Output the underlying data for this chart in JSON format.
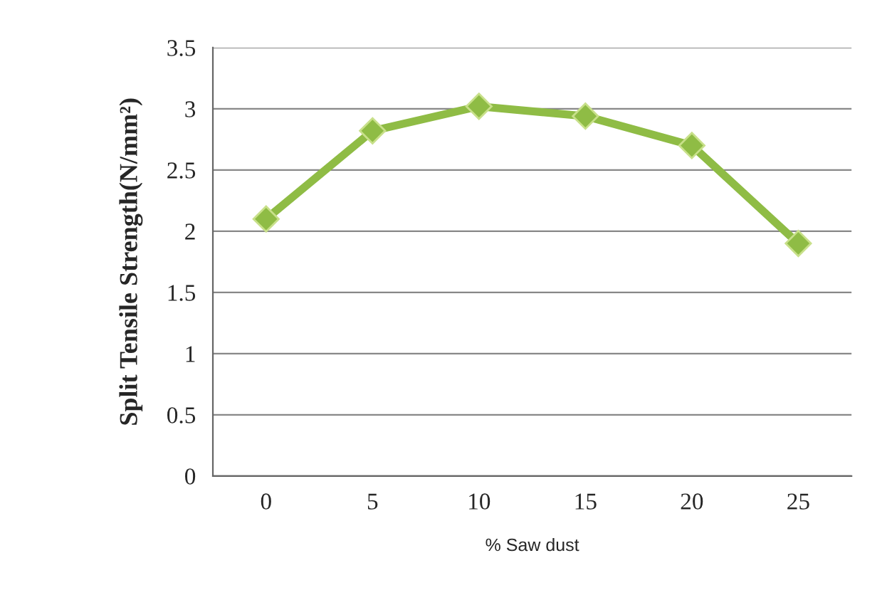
{
  "chart_data": {
    "type": "line",
    "xlabel": "% Saw dust",
    "ylabel": "Split Tensile Strength(N/mm²)",
    "categories": [
      "0",
      "5",
      "10",
      "15",
      "20",
      "25"
    ],
    "series": [
      {
        "color": "#8fbc45",
        "values": [
          2.1,
          2.82,
          3.02,
          2.94,
          2.7,
          1.9
        ]
      }
    ],
    "ylim": [
      0,
      3.5
    ],
    "yticks": [
      0,
      0.5,
      1,
      1.5,
      2,
      2.5,
      3,
      3.5
    ],
    "grid": "y",
    "marker": "diamond",
    "line_style": "solid",
    "legend": false
  }
}
